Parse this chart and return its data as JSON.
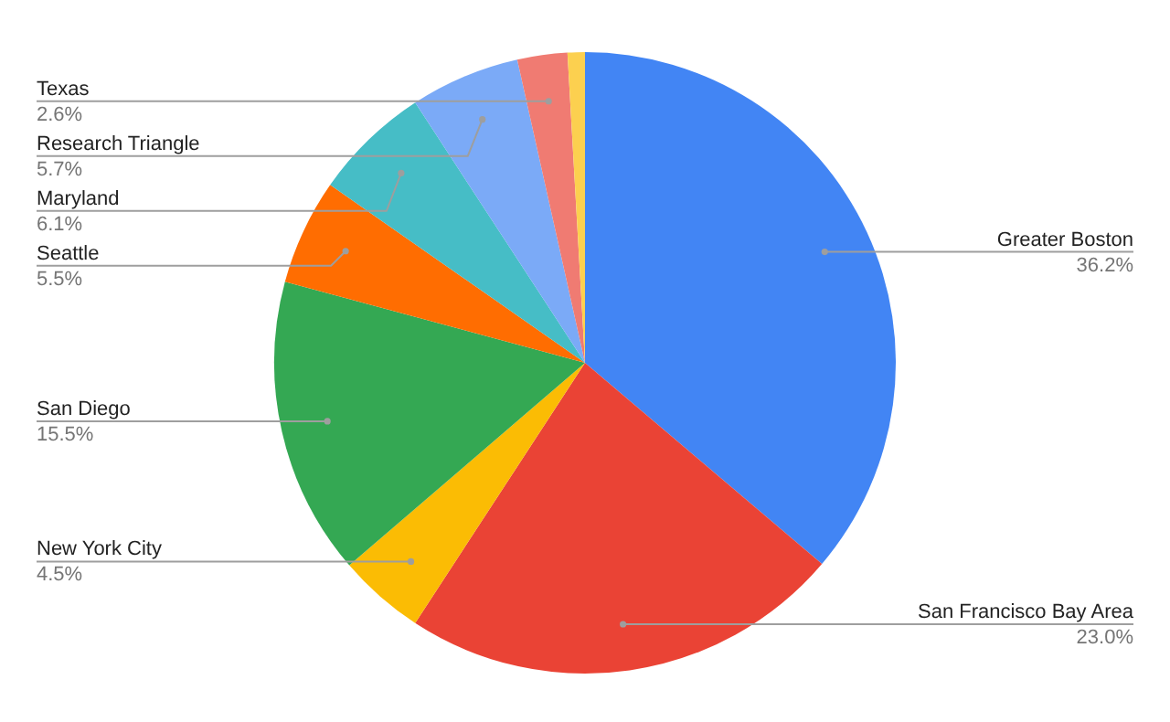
{
  "chart_data": {
    "type": "pie",
    "categories": [
      "Greater Boston",
      "San Francisco Bay Area",
      "New York City",
      "San Diego",
      "Seattle",
      "Maryland",
      "Research Triangle",
      "Texas",
      null
    ],
    "values": [
      36.2,
      23.0,
      4.5,
      15.5,
      5.5,
      6.1,
      5.7,
      2.6,
      0.9
    ],
    "colors": [
      "#4285f4",
      "#ea4335",
      "#fbbc04",
      "#34a853",
      "#ff6d01",
      "#46bdc6",
      "#7baaf7",
      "#f07b72",
      "#fcd04f"
    ],
    "value_labels": [
      "36.2%",
      "23.0%",
      "4.5%",
      "15.5%",
      "5.5%",
      "6.1%",
      "5.7%",
      "2.6%",
      null
    ],
    "legend": false
  }
}
